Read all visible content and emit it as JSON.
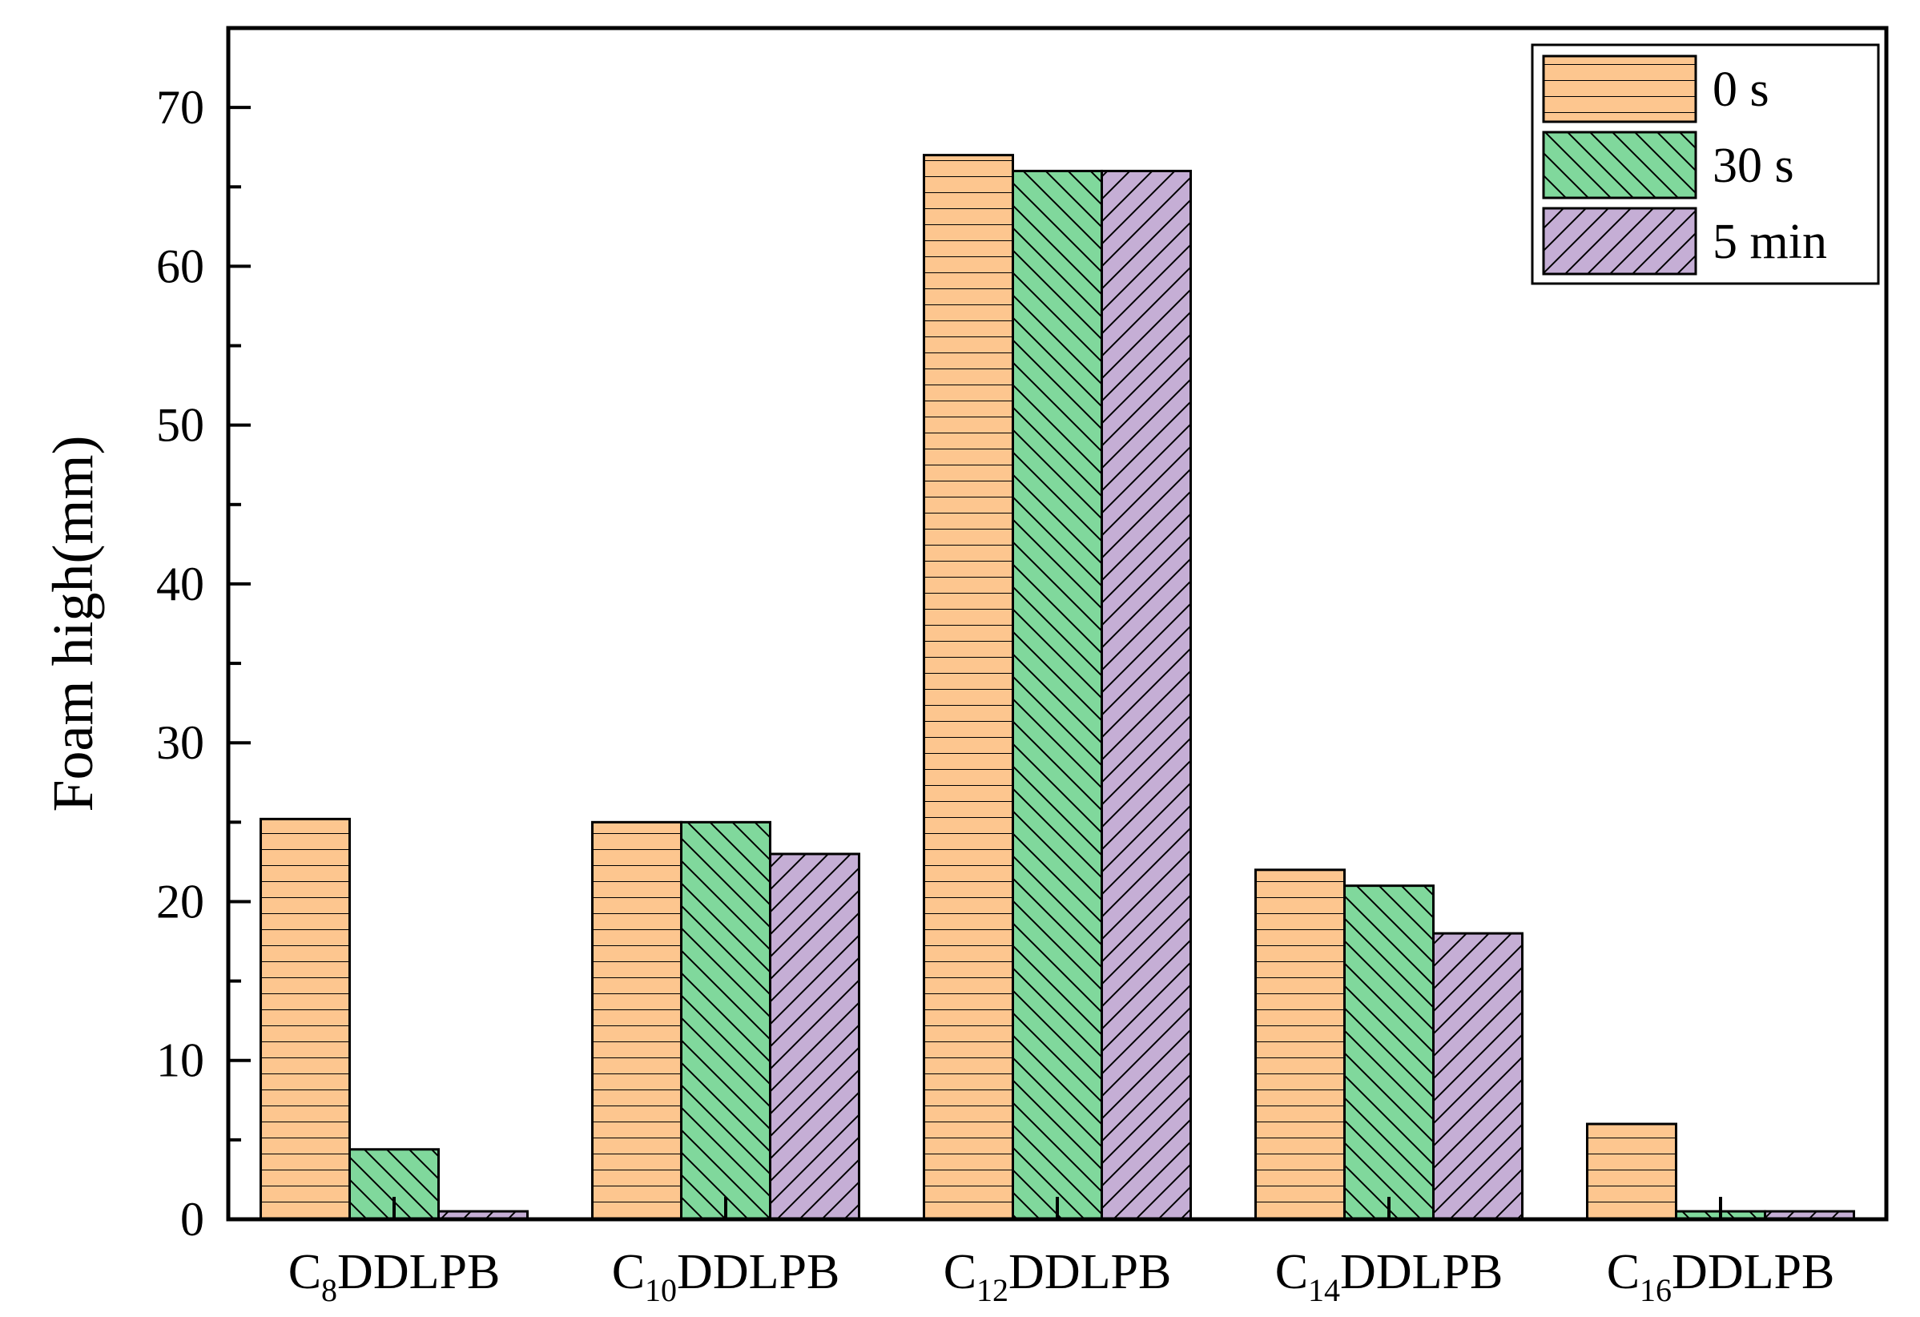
{
  "chart_data": {
    "type": "bar",
    "ylabel": "Foam high(mm)",
    "xlabel": "",
    "ylim": [
      0,
      75
    ],
    "yticks": [
      "0",
      "10",
      "20",
      "30",
      "40",
      "50",
      "60",
      "70"
    ],
    "categories": [
      {
        "prefix": "C",
        "sub": "8",
        "suffix": "DDLPB"
      },
      {
        "prefix": "C",
        "sub": "10",
        "suffix": "DDLPB"
      },
      {
        "prefix": "C",
        "sub": "12",
        "suffix": "DDLPB"
      },
      {
        "prefix": "C",
        "sub": "14",
        "suffix": "DDLPB"
      },
      {
        "prefix": "C",
        "sub": "16",
        "suffix": "DDLPB"
      }
    ],
    "series": [
      {
        "name": "0 s",
        "values": [
          25.2,
          25,
          67,
          22,
          6
        ],
        "color": "#FDC68F",
        "pattern": "horizontal"
      },
      {
        "name": "30 s",
        "values": [
          4.4,
          25,
          66,
          21,
          0.5
        ],
        "color": "#80D89C",
        "pattern": "backslash"
      },
      {
        "name": "5 min",
        "values": [
          0.5,
          23,
          66,
          18,
          0.5
        ],
        "color": "#C5AED5",
        "pattern": "slash"
      }
    ],
    "grid": false,
    "legend_position": "top-right"
  }
}
